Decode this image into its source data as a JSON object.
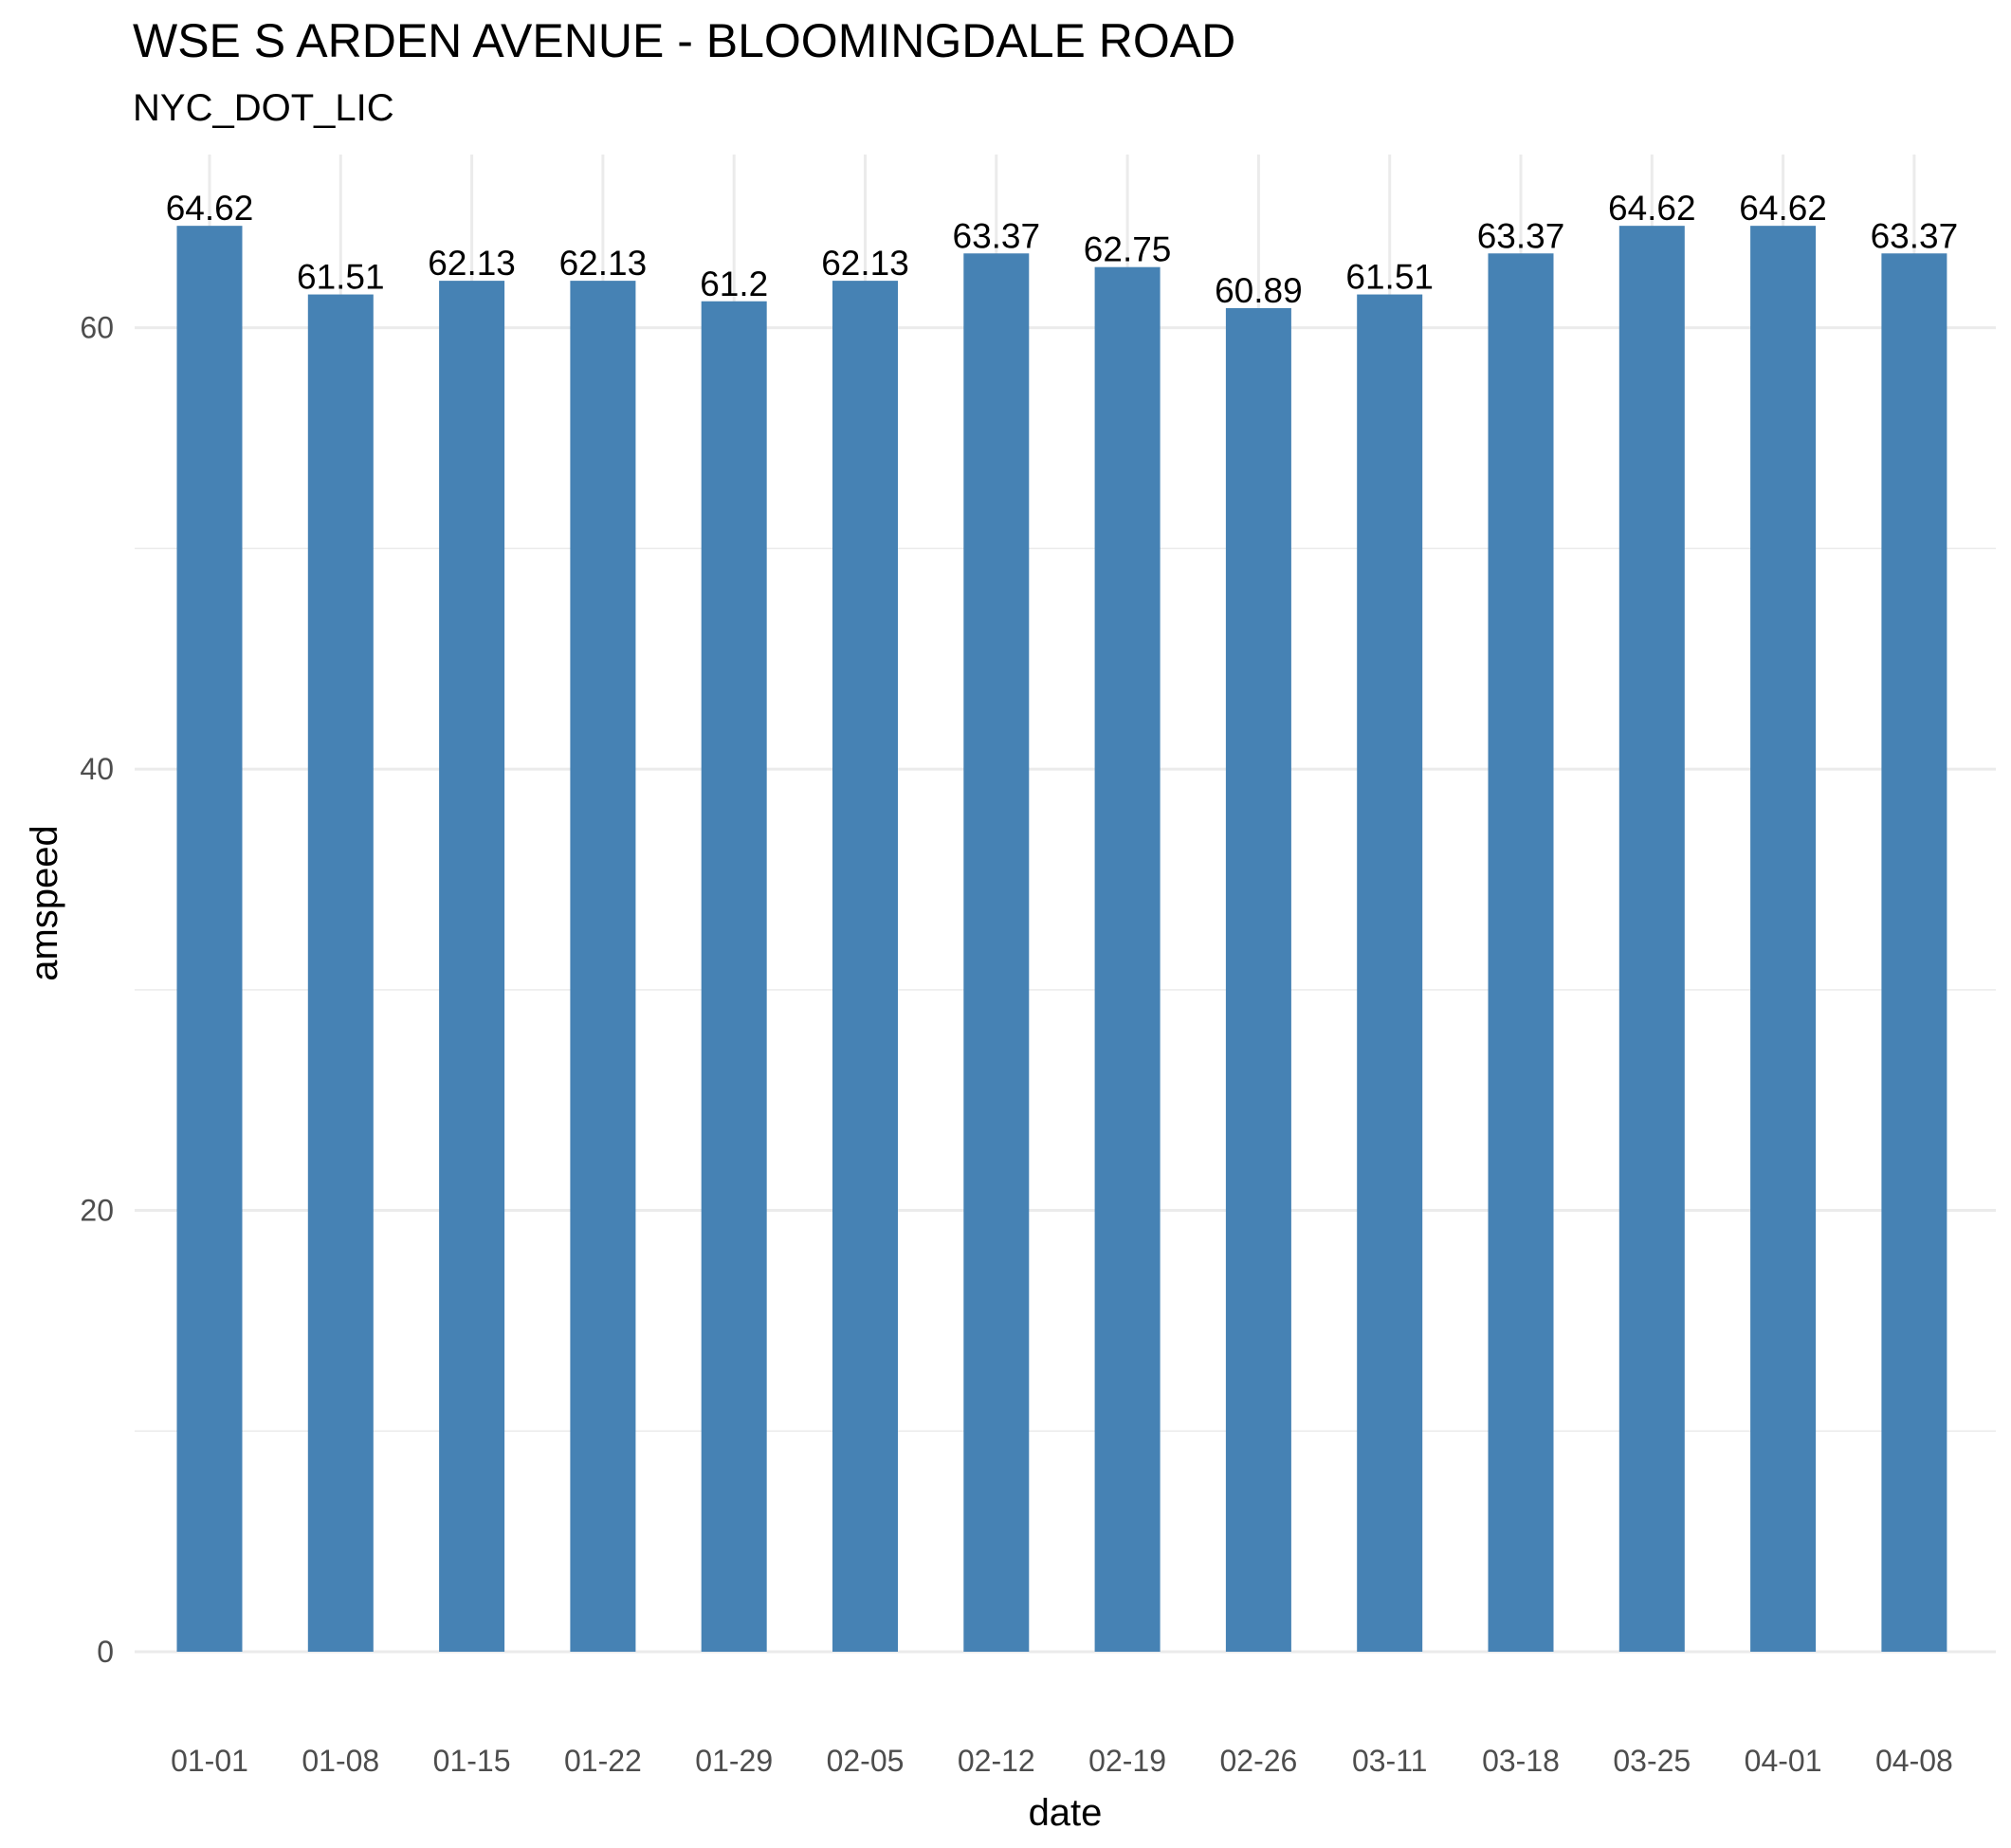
{
  "chart_data": {
    "type": "bar",
    "title": "WSE S ARDEN AVENUE - BLOOMINGDALE ROAD",
    "subtitle": "NYC_DOT_LIC",
    "xlabel": "date",
    "ylabel": "amspeed",
    "categories": [
      "01-01",
      "01-08",
      "01-15",
      "01-22",
      "01-29",
      "02-05",
      "02-12",
      "02-19",
      "02-26",
      "03-11",
      "03-18",
      "03-25",
      "04-01",
      "04-08"
    ],
    "values": [
      64.62,
      61.51,
      62.13,
      62.13,
      61.2,
      62.13,
      63.37,
      62.75,
      60.89,
      61.51,
      63.37,
      64.62,
      64.62,
      63.37
    ],
    "value_labels": [
      "64.62",
      "61.51",
      "62.13",
      "62.13",
      "61.2",
      "62.13",
      "63.37",
      "62.75",
      "60.89",
      "61.51",
      "63.37",
      "64.62",
      "64.62",
      "63.37"
    ],
    "yticks": [
      0,
      20,
      40,
      60
    ],
    "ytick_labels": [
      "0",
      "20",
      "40",
      "60"
    ],
    "ylim": [
      0,
      67.85
    ],
    "grid": true,
    "legend": "none",
    "bar_color": "#4682B4",
    "grid_color": "#EBEBEB"
  }
}
